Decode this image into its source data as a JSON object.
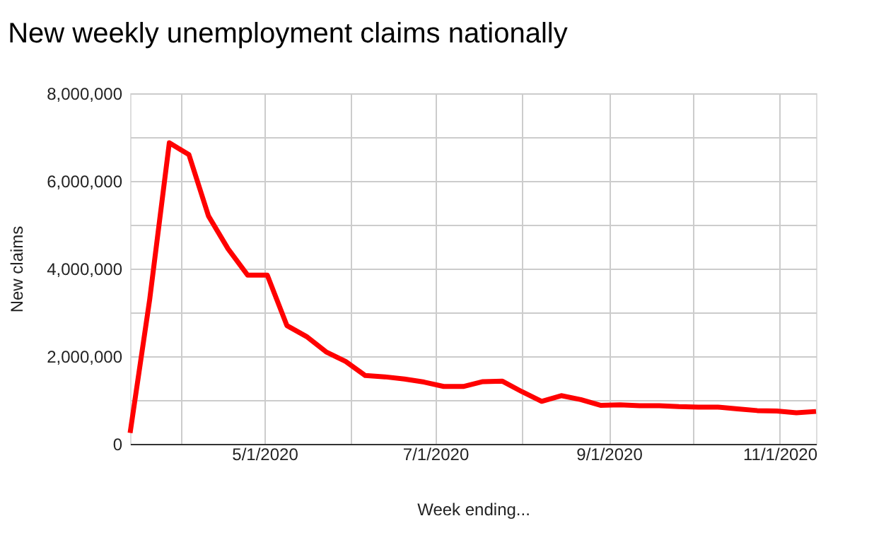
{
  "chart_data": {
    "type": "line",
    "title": "New weekly unemployment claims nationally",
    "xlabel": "Week ending...",
    "ylabel": "New claims",
    "x": [
      "2020-03-14",
      "2020-03-21",
      "2020-03-28",
      "2020-04-04",
      "2020-04-11",
      "2020-04-18",
      "2020-04-25",
      "2020-05-02",
      "2020-05-09",
      "2020-05-16",
      "2020-05-23",
      "2020-05-30",
      "2020-06-06",
      "2020-06-13",
      "2020-06-20",
      "2020-06-27",
      "2020-07-04",
      "2020-07-11",
      "2020-07-18",
      "2020-07-25",
      "2020-08-01",
      "2020-08-08",
      "2020-08-15",
      "2020-08-22",
      "2020-08-29",
      "2020-09-05",
      "2020-09-12",
      "2020-09-19",
      "2020-09-26",
      "2020-10-03",
      "2020-10-10",
      "2020-10-17",
      "2020-10-24",
      "2020-10-31",
      "2020-11-07",
      "2020-11-14"
    ],
    "series": [
      {
        "color": "#ff0000",
        "values": [
          250000,
          3300000,
          6870000,
          6600000,
          5200000,
          4450000,
          3850000,
          3850000,
          2700000,
          2450000,
          2100000,
          1880000,
          1560000,
          1530000,
          1480000,
          1410000,
          1310000,
          1310000,
          1420000,
          1430000,
          1190000,
          970000,
          1100000,
          1010000,
          880000,
          890000,
          870000,
          870000,
          850000,
          840000,
          840000,
          800000,
          760000,
          750000,
          710000,
          740000
        ]
      }
    ],
    "xlim": [
      "2020-03-14",
      "2020-11-14"
    ],
    "xticks": [
      {
        "value": "2020-04-01",
        "label": null
      },
      {
        "value": "2020-05-01",
        "label": "5/1/2020"
      },
      {
        "value": "2020-06-01",
        "label": null
      },
      {
        "value": "2020-07-01",
        "label": "7/1/2020"
      },
      {
        "value": "2020-08-01",
        "label": null
      },
      {
        "value": "2020-09-01",
        "label": "9/1/2020"
      },
      {
        "value": "2020-10-01",
        "label": null
      },
      {
        "value": "2020-11-01",
        "label": "11/1/2020"
      }
    ],
    "ylim": [
      0,
      8000000
    ],
    "yticks": [
      {
        "value": 0,
        "label": "0"
      },
      {
        "value": 1000000,
        "label": null
      },
      {
        "value": 2000000,
        "label": "2,000,000"
      },
      {
        "value": 3000000,
        "label": null
      },
      {
        "value": 4000000,
        "label": "4,000,000"
      },
      {
        "value": 5000000,
        "label": null
      },
      {
        "value": 6000000,
        "label": "6,000,000"
      },
      {
        "value": 7000000,
        "label": null
      },
      {
        "value": 8000000,
        "label": "8,000,000"
      }
    ],
    "grid": true,
    "marker": "none",
    "line_style": "solid"
  }
}
